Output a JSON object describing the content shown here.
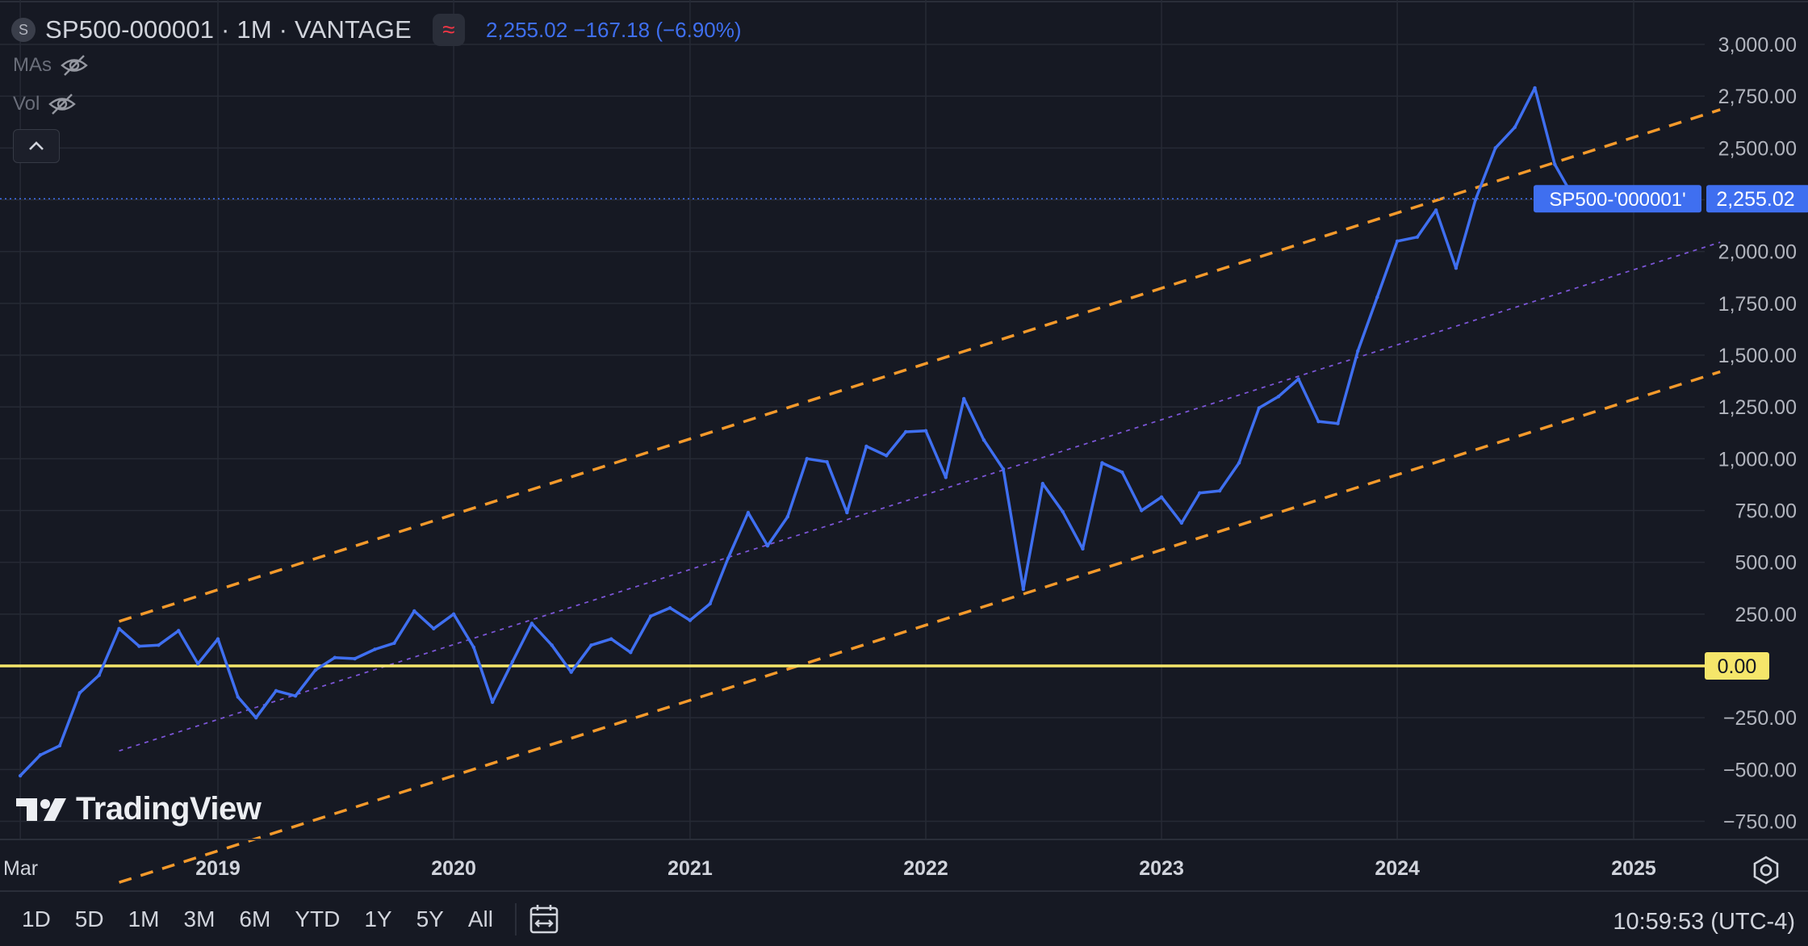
{
  "header": {
    "symbol_badge": "S",
    "title": "SP500-000001 · 1M · VANTAGE",
    "indicator_icon": "wave-icon",
    "price_info": "2,255.02  −167.18 (−6.90%)"
  },
  "legend": {
    "mas_label": "MAs",
    "vol_label": "Vol",
    "hidden_icon": "eye-off-icon",
    "collapse_icon": "chevron-up-icon"
  },
  "logo": {
    "text": "TradingView"
  },
  "chart_data": {
    "type": "line",
    "ylim": [
      -800,
      3100
    ],
    "y_ticks": [
      -750,
      -500,
      -250,
      0,
      250,
      500,
      750,
      1000,
      1250,
      1500,
      1750,
      2000,
      2250,
      2500,
      2750,
      3000
    ],
    "y_tick_labels": [
      "−750.00",
      "−500.00",
      "−250.00",
      "0.00",
      "250.00",
      "500.00",
      "750.00",
      "1,000.00",
      "1,250.00",
      "1,500.00",
      "1,750.00",
      "2,000.00",
      "2,250.00",
      "2,500.00",
      "2,750.00",
      "3,000.00"
    ],
    "x_ticks": [
      "2018-03-01",
      "2019-01-01",
      "2020-01-01",
      "2021-01-01",
      "2022-01-01",
      "2023-01-01",
      "2024-01-01",
      "2025-01-01"
    ],
    "x_tick_labels": [
      "Mar",
      "2019",
      "2020",
      "2021",
      "2022",
      "2023",
      "2024",
      "2025"
    ],
    "xlim": [
      "2018-03-01",
      "2025-05-15"
    ],
    "grid": true,
    "series": [
      {
        "color": "#3f6ff0",
        "x": [
          "2018-03-01",
          "2018-04-01",
          "2018-05-01",
          "2018-06-01",
          "2018-07-01",
          "2018-08-01",
          "2018-09-01",
          "2018-10-01",
          "2018-11-01",
          "2018-12-01",
          "2019-01-01",
          "2019-02-01",
          "2019-03-01",
          "2019-04-01",
          "2019-05-01",
          "2019-06-01",
          "2019-07-01",
          "2019-08-01",
          "2019-09-01",
          "2019-10-01",
          "2019-11-01",
          "2019-12-01",
          "2020-01-01",
          "2020-02-01",
          "2020-03-01",
          "2020-04-01",
          "2020-05-01",
          "2020-06-01",
          "2020-07-01",
          "2020-08-01",
          "2020-09-01",
          "2020-10-01",
          "2020-11-01",
          "2020-12-01",
          "2021-01-01",
          "2021-02-01",
          "2021-03-01",
          "2021-04-01",
          "2021-05-01",
          "2021-06-01",
          "2021-07-01",
          "2021-08-01",
          "2021-09-01",
          "2021-10-01",
          "2021-11-01",
          "2021-12-01",
          "2022-01-01",
          "2022-02-01",
          "2022-03-01",
          "2022-04-01",
          "2022-05-01",
          "2022-06-01",
          "2022-07-01",
          "2022-08-01",
          "2022-09-01",
          "2022-10-01",
          "2022-11-01",
          "2022-12-01",
          "2023-01-01",
          "2023-02-01",
          "2023-03-01",
          "2023-04-01",
          "2023-05-01",
          "2023-06-01",
          "2023-07-01",
          "2023-08-01",
          "2023-09-01",
          "2023-10-01",
          "2023-11-01",
          "2023-12-01",
          "2024-01-01",
          "2024-02-01",
          "2024-03-01",
          "2024-04-01",
          "2024-05-01",
          "2024-06-01",
          "2024-07-01",
          "2024-08-01",
          "2024-09-01",
          "2024-10-01"
        ],
        "values": [
          -530,
          -430,
          -385,
          -130,
          -45,
          180,
          95,
          100,
          170,
          10,
          130,
          -150,
          -250,
          -120,
          -145,
          -20,
          40,
          35,
          80,
          110,
          265,
          180,
          250,
          90,
          -175,
          20,
          205,
          100,
          -30,
          100,
          130,
          65,
          240,
          280,
          220,
          300,
          520,
          740,
          580,
          720,
          1000,
          985,
          740,
          1060,
          1015,
          1130,
          1135,
          910,
          1290,
          1090,
          950,
          370,
          880,
          745,
          565,
          980,
          935,
          750,
          815,
          690,
          835,
          845,
          980,
          1245,
          1300,
          1385,
          1180,
          1170,
          1520,
          1780,
          2050,
          2070,
          2200,
          1920,
          2250,
          2500,
          2600,
          2790,
          2420,
          2255.02
        ]
      }
    ],
    "channel": {
      "upper": {
        "x": [
          "2018-08-01",
          "2025-05-15"
        ],
        "y": [
          215,
          2685
        ],
        "color": "#f59a2b",
        "style": "dashed"
      },
      "middle": {
        "x": [
          "2018-08-01",
          "2025-05-15"
        ],
        "y": [
          -410,
          2045
        ],
        "color": "#7b55d6",
        "style": "dotted"
      },
      "lower": {
        "x": [
          "2018-08-01",
          "2025-05-15"
        ],
        "y": [
          -1045,
          1420
        ],
        "color": "#f59a2b",
        "style": "dashed"
      }
    },
    "hline": {
      "value": 0,
      "label": "0.00",
      "color": "#f5e66a"
    },
    "last_price": {
      "value": 2255.02,
      "label": "2,255.02",
      "series_label": "SP500-'000001'",
      "color": "#3f6ff0"
    }
  },
  "bottom_bar": {
    "ranges": [
      "1D",
      "5D",
      "1M",
      "3M",
      "6M",
      "YTD",
      "1Y",
      "5Y",
      "All"
    ],
    "date_range_icon": "calendar-range-icon",
    "clock": "10:59:53 (UTC-4)",
    "settings_icon": "gear-icon"
  }
}
